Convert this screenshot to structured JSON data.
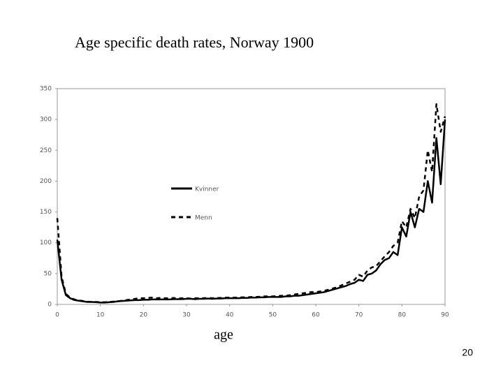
{
  "chart_data": {
    "type": "line",
    "title": "Age specific death rates, Norway 1900",
    "xlabel": "age",
    "x": [
      0,
      1,
      2,
      3,
      4,
      5,
      6,
      7,
      8,
      9,
      10,
      11,
      12,
      13,
      14,
      15,
      16,
      17,
      18,
      19,
      20,
      21,
      22,
      23,
      24,
      25,
      26,
      27,
      28,
      29,
      30,
      31,
      32,
      33,
      34,
      35,
      36,
      37,
      38,
      39,
      40,
      41,
      42,
      43,
      44,
      45,
      46,
      47,
      48,
      49,
      50,
      51,
      52,
      53,
      54,
      55,
      56,
      57,
      58,
      59,
      60,
      61,
      62,
      63,
      64,
      65,
      66,
      67,
      68,
      69,
      70,
      71,
      72,
      73,
      74,
      75,
      76,
      77,
      78,
      79,
      80,
      81,
      82,
      83,
      84,
      85,
      86,
      87,
      88,
      89,
      90
    ],
    "series": [
      {
        "name": "Kvinner",
        "color": "#000000",
        "dash": false,
        "values": [
          105,
          40,
          15,
          10,
          7,
          6,
          5,
          4,
          4,
          3.5,
          3,
          3,
          3.5,
          4,
          5,
          5.5,
          6,
          6.5,
          7,
          7,
          7.5,
          7.5,
          8,
          8,
          8,
          8,
          8,
          8.5,
          8.5,
          8.5,
          9,
          9,
          8.5,
          9,
          9,
          9.5,
          9,
          9.5,
          9.5,
          10,
          10,
          10,
          10,
          10.5,
          10.5,
          11,
          11,
          11.5,
          11.5,
          12,
          12,
          12,
          12,
          13,
          13,
          14,
          14,
          15,
          16,
          17,
          18,
          19,
          20,
          22,
          24,
          26,
          28,
          30,
          33,
          35,
          40,
          38,
          48,
          50,
          55,
          65,
          72,
          75,
          85,
          80,
          125,
          110,
          150,
          125,
          155,
          150,
          200,
          165,
          270,
          195,
          300
        ]
      },
      {
        "name": "Menn",
        "color": "#000000",
        "dash": true,
        "values": [
          140,
          45,
          17,
          11,
          8,
          6.5,
          5.5,
          4.5,
          4,
          4,
          3.5,
          3.5,
          4,
          4.5,
          5,
          6,
          7,
          8,
          9,
          10,
          10,
          10.5,
          11,
          10,
          10.5,
          10,
          10,
          10.5,
          9.5,
          10,
          10,
          9.5,
          10,
          10,
          10,
          10.5,
          10,
          10.5,
          10.5,
          11,
          11,
          11,
          11,
          11.5,
          11.5,
          12,
          12,
          12.5,
          13,
          13,
          13,
          13.5,
          14,
          14,
          15,
          16,
          17,
          18,
          19,
          20,
          20,
          21,
          22,
          24,
          26,
          28,
          31,
          34,
          37,
          40,
          48,
          45,
          55,
          60,
          62,
          70,
          78,
          85,
          95,
          100,
          135,
          125,
          155,
          140,
          175,
          185,
          250,
          215,
          325,
          280,
          305
        ]
      }
    ],
    "xlim": [
      0,
      90
    ],
    "ylim": [
      0,
      350
    ],
    "xticks": [
      0,
      10,
      20,
      30,
      40,
      50,
      60,
      70,
      80,
      90
    ],
    "yticks": [
      0,
      50,
      100,
      150,
      200,
      250,
      300,
      350
    ]
  },
  "page_number": "20"
}
